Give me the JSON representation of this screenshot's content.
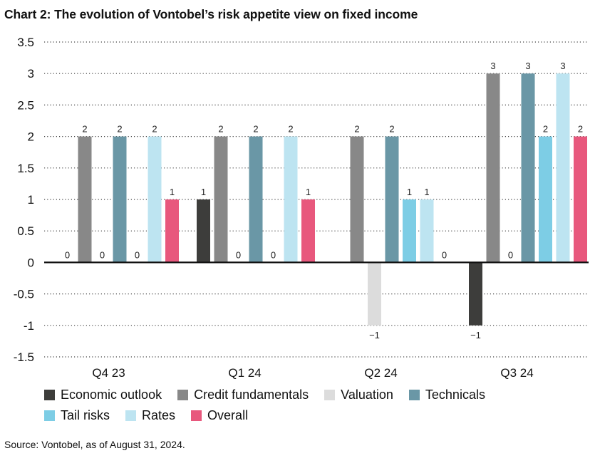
{
  "title": "Chart 2: The evolution of Vontobel’s risk appetite view on fixed income",
  "source": "Source: Vontobel, as of August 31, 2024.",
  "chart_data": {
    "type": "bar",
    "categories": [
      "Q4 23",
      "Q1 24",
      "Q2 24",
      "Q3 24"
    ],
    "ylim": [
      -1.5,
      3.5
    ],
    "yticks": [
      3.5,
      3,
      2.5,
      2,
      1.5,
      1,
      0.5,
      0,
      -0.5,
      -1,
      -1.5
    ],
    "ytick_labels": [
      "3.5",
      "3",
      "2.5",
      "2",
      "1.5",
      "1",
      "0.5",
      "0",
      "-0.5",
      "-1",
      "-1.5"
    ],
    "grid": true,
    "legend_position": "bottom",
    "series": [
      {
        "name": "Economic outlook",
        "color": "#3d3d3b",
        "values": [
          0,
          1,
          null,
          -1
        ],
        "labels": [
          "0",
          "1",
          "",
          "−1"
        ]
      },
      {
        "name": "Credit fundamentals",
        "color": "#888888",
        "values": [
          2,
          2,
          2,
          3
        ],
        "labels": [
          "2",
          "2",
          "2",
          "3"
        ]
      },
      {
        "name": "Valuation",
        "color": "#dcdcdc",
        "values": [
          0,
          0,
          -1,
          0
        ],
        "labels": [
          "0",
          "0",
          "−1",
          "0"
        ]
      },
      {
        "name": "Technicals",
        "color": "#6a97a6",
        "values": [
          2,
          2,
          2,
          3
        ],
        "labels": [
          "2",
          "2",
          "2",
          "3"
        ]
      },
      {
        "name": "Tail risks",
        "color": "#7dcde5",
        "values": [
          0,
          0,
          1,
          2
        ],
        "labels": [
          "0",
          "0",
          "1",
          "2"
        ]
      },
      {
        "name": "Rates",
        "color": "#bde4f1",
        "values": [
          2,
          2,
          1,
          3
        ],
        "labels": [
          "2",
          "2",
          "1",
          "3"
        ]
      },
      {
        "name": "Overall",
        "color": "#e8587d",
        "values": [
          1,
          1,
          0,
          2
        ],
        "labels": [
          "1",
          "1",
          "0",
          "2"
        ]
      }
    ]
  }
}
